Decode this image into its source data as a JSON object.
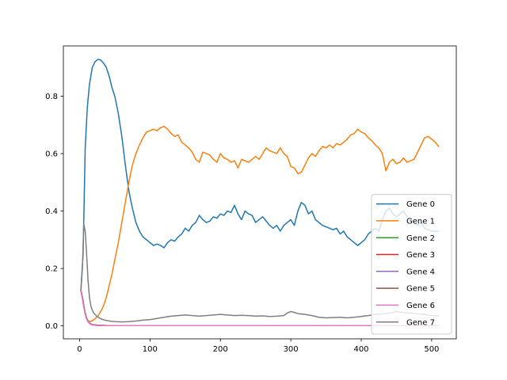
{
  "chart_data": {
    "type": "line",
    "title": "",
    "xlabel": "",
    "ylabel": "",
    "xlim": [
      -23,
      535
    ],
    "ylim": [
      -0.045,
      0.975
    ],
    "xticks": [
      0,
      100,
      200,
      300,
      400,
      500
    ],
    "yticks": [
      0.0,
      0.2,
      0.4,
      0.6,
      0.8
    ],
    "xtick_labels": [
      "0",
      "100",
      "200",
      "300",
      "400",
      "500"
    ],
    "ytick_labels": [
      "0.0",
      "0.2",
      "0.4",
      "0.6",
      "0.8"
    ],
    "grid": false,
    "legend_position": "lower-right",
    "series": [
      {
        "name": "Gene 0",
        "color": "#1f77b4",
        "x": [
          2,
          5,
          8,
          11,
          14,
          18,
          22,
          26,
          30,
          34,
          38,
          42,
          46,
          50,
          55,
          60,
          65,
          70,
          75,
          80,
          85,
          90,
          95,
          100,
          105,
          110,
          115,
          120,
          125,
          130,
          135,
          140,
          145,
          150,
          155,
          160,
          165,
          170,
          175,
          180,
          185,
          190,
          195,
          200,
          205,
          210,
          215,
          220,
          225,
          230,
          235,
          240,
          245,
          250,
          255,
          260,
          265,
          270,
          275,
          280,
          285,
          290,
          295,
          300,
          305,
          310,
          315,
          320,
          325,
          330,
          335,
          340,
          345,
          350,
          355,
          360,
          365,
          370,
          375,
          380,
          385,
          390,
          395,
          400,
          405,
          410,
          415,
          420,
          425,
          430,
          435,
          440,
          445,
          450,
          455,
          460,
          465,
          470,
          475,
          480,
          485,
          490,
          495,
          500,
          505,
          510
        ],
        "y": [
          0.13,
          0.25,
          0.62,
          0.76,
          0.84,
          0.9,
          0.92,
          0.928,
          0.926,
          0.915,
          0.9,
          0.87,
          0.83,
          0.8,
          0.74,
          0.66,
          0.56,
          0.47,
          0.41,
          0.36,
          0.33,
          0.31,
          0.3,
          0.29,
          0.28,
          0.285,
          0.28,
          0.272,
          0.29,
          0.3,
          0.295,
          0.31,
          0.32,
          0.34,
          0.33,
          0.35,
          0.36,
          0.385,
          0.37,
          0.36,
          0.365,
          0.38,
          0.375,
          0.39,
          0.385,
          0.4,
          0.395,
          0.42,
          0.39,
          0.37,
          0.4,
          0.39,
          0.385,
          0.36,
          0.37,
          0.38,
          0.365,
          0.35,
          0.34,
          0.35,
          0.33,
          0.35,
          0.36,
          0.37,
          0.35,
          0.4,
          0.43,
          0.42,
          0.39,
          0.4,
          0.37,
          0.36,
          0.35,
          0.345,
          0.34,
          0.335,
          0.34,
          0.32,
          0.33,
          0.31,
          0.3,
          0.29,
          0.28,
          0.29,
          0.3,
          0.32,
          0.33,
          0.34,
          0.33,
          0.37,
          0.4,
          0.41,
          0.39,
          0.38,
          0.39,
          0.4,
          0.38,
          0.37,
          0.36,
          0.35,
          0.36,
          0.34,
          0.335,
          0.33,
          0.33,
          0.33
        ]
      },
      {
        "name": "Gene 1",
        "color": "#ff7f0e",
        "x": [
          2,
          5,
          8,
          11,
          14,
          18,
          22,
          26,
          30,
          34,
          38,
          42,
          46,
          50,
          55,
          60,
          65,
          70,
          75,
          80,
          85,
          90,
          95,
          100,
          105,
          110,
          115,
          120,
          125,
          130,
          135,
          140,
          145,
          150,
          155,
          160,
          165,
          170,
          175,
          180,
          185,
          190,
          195,
          200,
          205,
          210,
          215,
          220,
          225,
          230,
          235,
          240,
          245,
          250,
          255,
          260,
          265,
          270,
          275,
          280,
          285,
          290,
          295,
          300,
          305,
          310,
          315,
          320,
          325,
          330,
          335,
          340,
          345,
          350,
          355,
          360,
          365,
          370,
          375,
          380,
          385,
          390,
          395,
          400,
          405,
          410,
          415,
          420,
          425,
          430,
          435,
          440,
          445,
          450,
          455,
          460,
          465,
          470,
          475,
          480,
          485,
          490,
          495,
          500,
          505,
          510
        ],
        "y": [
          0.12,
          0.09,
          0.04,
          0.02,
          0.015,
          0.018,
          0.025,
          0.035,
          0.05,
          0.07,
          0.1,
          0.14,
          0.18,
          0.23,
          0.29,
          0.36,
          0.43,
          0.5,
          0.56,
          0.6,
          0.63,
          0.655,
          0.675,
          0.68,
          0.685,
          0.68,
          0.69,
          0.695,
          0.685,
          0.67,
          0.66,
          0.665,
          0.64,
          0.63,
          0.62,
          0.605,
          0.58,
          0.57,
          0.605,
          0.6,
          0.595,
          0.58,
          0.57,
          0.6,
          0.585,
          0.58,
          0.57,
          0.575,
          0.55,
          0.58,
          0.575,
          0.57,
          0.58,
          0.59,
          0.58,
          0.6,
          0.62,
          0.61,
          0.605,
          0.6,
          0.62,
          0.6,
          0.59,
          0.555,
          0.55,
          0.53,
          0.535,
          0.56,
          0.585,
          0.6,
          0.59,
          0.61,
          0.625,
          0.62,
          0.63,
          0.62,
          0.635,
          0.63,
          0.64,
          0.65,
          0.665,
          0.67,
          0.685,
          0.675,
          0.67,
          0.655,
          0.645,
          0.63,
          0.62,
          0.6,
          0.54,
          0.57,
          0.58,
          0.565,
          0.57,
          0.585,
          0.57,
          0.575,
          0.58,
          0.605,
          0.63,
          0.655,
          0.66,
          0.65,
          0.64,
          0.625
        ]
      },
      {
        "name": "Gene 2",
        "color": "#2ca02c",
        "x": [
          2,
          4,
          6,
          8,
          10,
          12,
          14,
          16,
          18,
          20,
          24,
          28,
          32,
          40,
          50,
          100,
          200,
          300,
          400,
          510
        ],
        "y": [
          0.125,
          0.1,
          0.07,
          0.045,
          0.028,
          0.017,
          0.011,
          0.007,
          0.005,
          0.004,
          0.003,
          0.002,
          0.002,
          0.001,
          0.001,
          0.001,
          0.001,
          0.001,
          0.001,
          0.001
        ]
      },
      {
        "name": "Gene 3",
        "color": "#d62728",
        "x": [
          2,
          4,
          6,
          8,
          10,
          12,
          14,
          16,
          18,
          20,
          24,
          28,
          32,
          40,
          50,
          100,
          200,
          300,
          400,
          510
        ],
        "y": [
          0.124,
          0.099,
          0.069,
          0.044,
          0.027,
          0.016,
          0.01,
          0.007,
          0.005,
          0.004,
          0.003,
          0.002,
          0.002,
          0.001,
          0.001,
          0.001,
          0.001,
          0.001,
          0.001,
          0.001
        ]
      },
      {
        "name": "Gene 4",
        "color": "#9467bd",
        "x": [
          2,
          4,
          6,
          8,
          10,
          12,
          14,
          16,
          18,
          20,
          24,
          28,
          32,
          40,
          50,
          100,
          200,
          300,
          400,
          510
        ],
        "y": [
          0.123,
          0.098,
          0.068,
          0.043,
          0.026,
          0.016,
          0.01,
          0.006,
          0.004,
          0.003,
          0.002,
          0.002,
          0.001,
          0.001,
          0.001,
          0.001,
          0.001,
          0.001,
          0.001,
          0.001
        ]
      },
      {
        "name": "Gene 5",
        "color": "#8c564b",
        "x": [
          2,
          4,
          6,
          8,
          10,
          12,
          14,
          16,
          18,
          20,
          24,
          28,
          32,
          40,
          50,
          100,
          200,
          300,
          400,
          510
        ],
        "y": [
          0.122,
          0.097,
          0.067,
          0.042,
          0.025,
          0.015,
          0.009,
          0.006,
          0.004,
          0.003,
          0.002,
          0.002,
          0.001,
          0.001,
          0.001,
          0.001,
          0.001,
          0.001,
          0.001,
          0.001
        ]
      },
      {
        "name": "Gene 6",
        "color": "#e377c2",
        "x": [
          2,
          4,
          6,
          8,
          10,
          12,
          14,
          16,
          18,
          20,
          24,
          28,
          32,
          40,
          50,
          100,
          200,
          300,
          400,
          510
        ],
        "y": [
          0.121,
          0.096,
          0.066,
          0.041,
          0.024,
          0.015,
          0.009,
          0.006,
          0.004,
          0.003,
          0.002,
          0.002,
          0.001,
          0.001,
          0.001,
          0.001,
          0.001,
          0.001,
          0.001,
          0.001
        ]
      },
      {
        "name": "Gene 7",
        "color": "#7f7f7f",
        "x": [
          2,
          4,
          6,
          8,
          10,
          12,
          14,
          16,
          18,
          20,
          24,
          28,
          32,
          36,
          40,
          45,
          50,
          60,
          70,
          80,
          90,
          100,
          110,
          120,
          130,
          140,
          150,
          160,
          170,
          180,
          190,
          200,
          210,
          220,
          230,
          240,
          250,
          260,
          270,
          280,
          290,
          295,
          300,
          305,
          310,
          320,
          330,
          340,
          350,
          360,
          370,
          380,
          390,
          400,
          410,
          420,
          430,
          440,
          450,
          460,
          470,
          480,
          490,
          500,
          510
        ],
        "y": [
          0.125,
          0.2,
          0.355,
          0.33,
          0.25,
          0.16,
          0.1,
          0.07,
          0.055,
          0.045,
          0.035,
          0.028,
          0.023,
          0.02,
          0.018,
          0.016,
          0.015,
          0.014,
          0.015,
          0.017,
          0.02,
          0.022,
          0.026,
          0.03,
          0.034,
          0.036,
          0.038,
          0.036,
          0.034,
          0.036,
          0.038,
          0.04,
          0.038,
          0.036,
          0.037,
          0.036,
          0.034,
          0.035,
          0.033,
          0.034,
          0.036,
          0.045,
          0.05,
          0.047,
          0.043,
          0.04,
          0.036,
          0.03,
          0.028,
          0.029,
          0.03,
          0.028,
          0.03,
          0.033,
          0.036,
          0.04,
          0.042,
          0.045,
          0.05,
          0.047,
          0.045,
          0.042,
          0.04,
          0.036,
          0.035
        ]
      }
    ]
  }
}
